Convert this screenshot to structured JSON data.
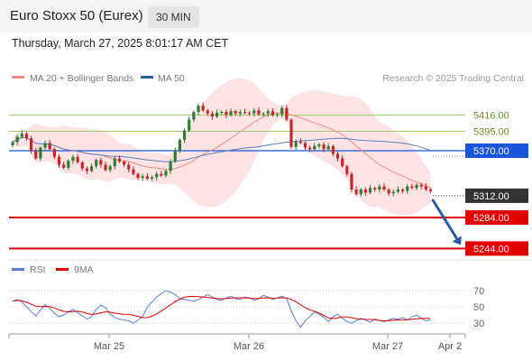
{
  "header": {
    "title": "Euro Stoxx 50 (Eurex)",
    "interval": "30 MIN",
    "datetime": "Thursday, March 27, 2025 8:01:17 AM CET"
  },
  "legend": {
    "bollinger": "MA 20 + Bollinger Bands",
    "ma50": "MA 50",
    "credit": "Research © 2025 Trading Central",
    "rsi": "RSI",
    "rsi_ma": "9MA"
  },
  "colors": {
    "candle_up": "#2e7d32",
    "candle_down": "#c62828",
    "ma20": "#f28b82",
    "band_fill": "#fde3e3",
    "ma50": "#5c7fc4",
    "resistance": "#9acd6b",
    "pivot": "#1a56db",
    "support": "#e00000",
    "current": "#333333",
    "arrow": "#2b5c9c",
    "rsi": "#5b7fd6",
    "rsi_ma": "#e00000"
  },
  "chart_data": [
    {
      "type": "candlestick",
      "y_range": [
        5210,
        5480
      ],
      "x_ticks": [
        "Mar 25",
        "Mar 26",
        "Mar 27",
        "Apr 2"
      ],
      "levels": [
        {
          "value": 5416,
          "label": "5416.00",
          "kind": "resistance"
        },
        {
          "value": 5395,
          "label": "5395.00",
          "kind": "resistance"
        },
        {
          "value": 5370,
          "label": "5370.00",
          "kind": "pivot"
        },
        {
          "value": 5312,
          "label": "5312.00",
          "kind": "current"
        },
        {
          "value": 5284,
          "label": "5284.00",
          "kind": "support"
        },
        {
          "value": 5244,
          "label": "5244.00",
          "kind": "support"
        }
      ],
      "close": [
        5381,
        5388,
        5392,
        5386,
        5370,
        5360,
        5374,
        5380,
        5372,
        5362,
        5352,
        5348,
        5357,
        5362,
        5355,
        5347,
        5344,
        5350,
        5358,
        5352,
        5345,
        5350,
        5360,
        5356,
        5352,
        5346,
        5340,
        5335,
        5337,
        5334,
        5336,
        5340,
        5338,
        5344,
        5356,
        5370,
        5384,
        5396,
        5410,
        5420,
        5428,
        5422,
        5418,
        5414,
        5419,
        5420,
        5416,
        5421,
        5418,
        5420,
        5419,
        5418,
        5422,
        5417,
        5418,
        5421,
        5416,
        5417,
        5425,
        5410,
        5375,
        5382,
        5380,
        5374,
        5372,
        5376,
        5378,
        5372,
        5376,
        5366,
        5360,
        5350,
        5340,
        5320,
        5314,
        5320,
        5316,
        5322,
        5320,
        5324,
        5320,
        5315,
        5317,
        5320,
        5318,
        5324,
        5322,
        5326,
        5324,
        5320,
        5318
      ],
      "forecast_arrow": {
        "from": 5312,
        "to": 5244
      },
      "ma20_band": "MA 20 + Bollinger Bands",
      "ma50_line": "MA 50"
    },
    {
      "type": "line",
      "series_names": [
        "RSI",
        "9MA"
      ],
      "y_range": [
        20,
        80
      ],
      "y_ticks": [
        70,
        50,
        30
      ],
      "rsi": [
        57,
        59,
        56,
        50,
        44,
        39,
        46,
        53,
        48,
        42,
        38,
        40,
        44,
        47,
        43,
        39,
        35,
        38,
        47,
        52,
        49,
        41,
        37,
        35,
        34,
        33,
        30,
        34,
        38,
        50,
        56,
        62,
        66,
        70,
        68,
        65,
        60,
        59,
        58,
        57,
        59,
        62,
        65,
        62,
        59,
        58,
        61,
        63,
        60,
        59,
        62,
        61,
        58,
        60,
        64,
        62,
        59,
        61,
        63,
        60,
        45,
        33,
        25,
        33,
        38,
        44,
        41,
        37,
        32,
        38,
        41,
        36,
        32,
        30,
        33,
        36,
        34,
        31,
        35,
        33,
        32,
        34,
        36,
        35,
        37,
        34,
        38,
        40,
        36,
        33,
        34
      ]
    }
  ]
}
